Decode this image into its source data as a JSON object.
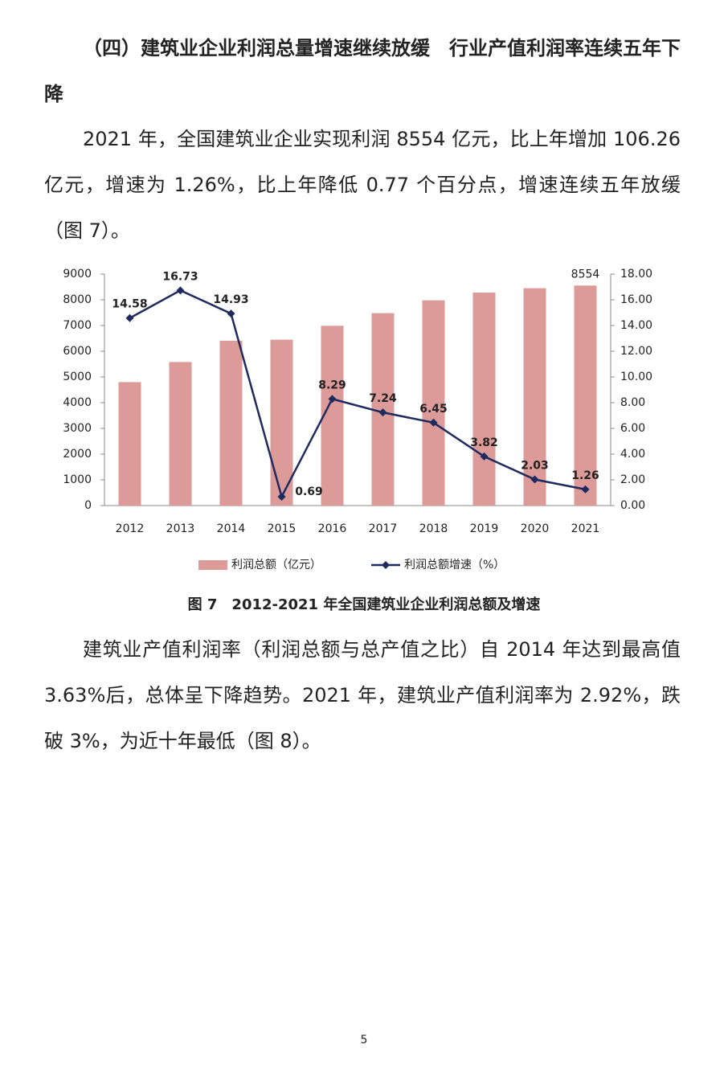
{
  "heading": "（四）建筑业企业利润总量增速继续放缓　行业产值利润率连续五年下降",
  "paragraphs": [
    "2021 年，全国建筑业企业实现利润 8554 亿元，比上年增加 106.26 亿元，增速为 1.26%，比上年降低 0.77 个百分点，增速连续五年放缓（图 7）。",
    "建筑业产值利润率（利润总额与总产值之比）自 2014 年达到最高值 3.63%后，总体呈下降趋势。2021 年，建筑业产值利润率为 2.92%，跌破 3%，为近十年最低（图 8）。"
  ],
  "chart_data": {
    "type": "bar",
    "categories": [
      "2012",
      "2013",
      "2014",
      "2015",
      "2016",
      "2017",
      "2018",
      "2019",
      "2020",
      "2021"
    ],
    "series": [
      {
        "name": "利润总额（亿元）",
        "type": "bar",
        "color": "#dc9a98",
        "values": [
          4800,
          5580,
          6410,
          6450,
          6990,
          7480,
          7980,
          8280,
          8450,
          8554
        ],
        "value_labels": [
          null,
          null,
          null,
          null,
          null,
          null,
          null,
          null,
          null,
          "8554"
        ]
      },
      {
        "name": "利润总额增速（%）",
        "type": "line",
        "axis": "y2",
        "color": "#1f2a5e",
        "values": [
          14.58,
          16.73,
          14.93,
          0.69,
          8.29,
          7.24,
          6.45,
          3.82,
          2.03,
          1.26
        ]
      }
    ],
    "ylim": [
      0,
      9000
    ],
    "yticks": [
      0,
      1000,
      2000,
      3000,
      4000,
      5000,
      6000,
      7000,
      8000,
      9000
    ],
    "y2lim": [
      0,
      18
    ],
    "y2ticks": [
      {
        "value": 0,
        "label": "0.00"
      },
      {
        "value": 2,
        "label": "2.00"
      },
      {
        "value": 4,
        "label": "4.00"
      },
      {
        "value": 6,
        "label": "6.00"
      },
      {
        "value": 8,
        "label": "8.00"
      },
      {
        "value": 10,
        "label": "10.00"
      },
      {
        "value": 12,
        "label": "12.00"
      },
      {
        "value": 14,
        "label": "14.00"
      },
      {
        "value": 16,
        "label": "16.00"
      },
      {
        "value": 18,
        "label": "18.00"
      }
    ],
    "grid": false,
    "legend": "bottom"
  },
  "caption": "图 7　2012-2021 年全国建筑业企业利润总额及增速",
  "page_number": "5"
}
